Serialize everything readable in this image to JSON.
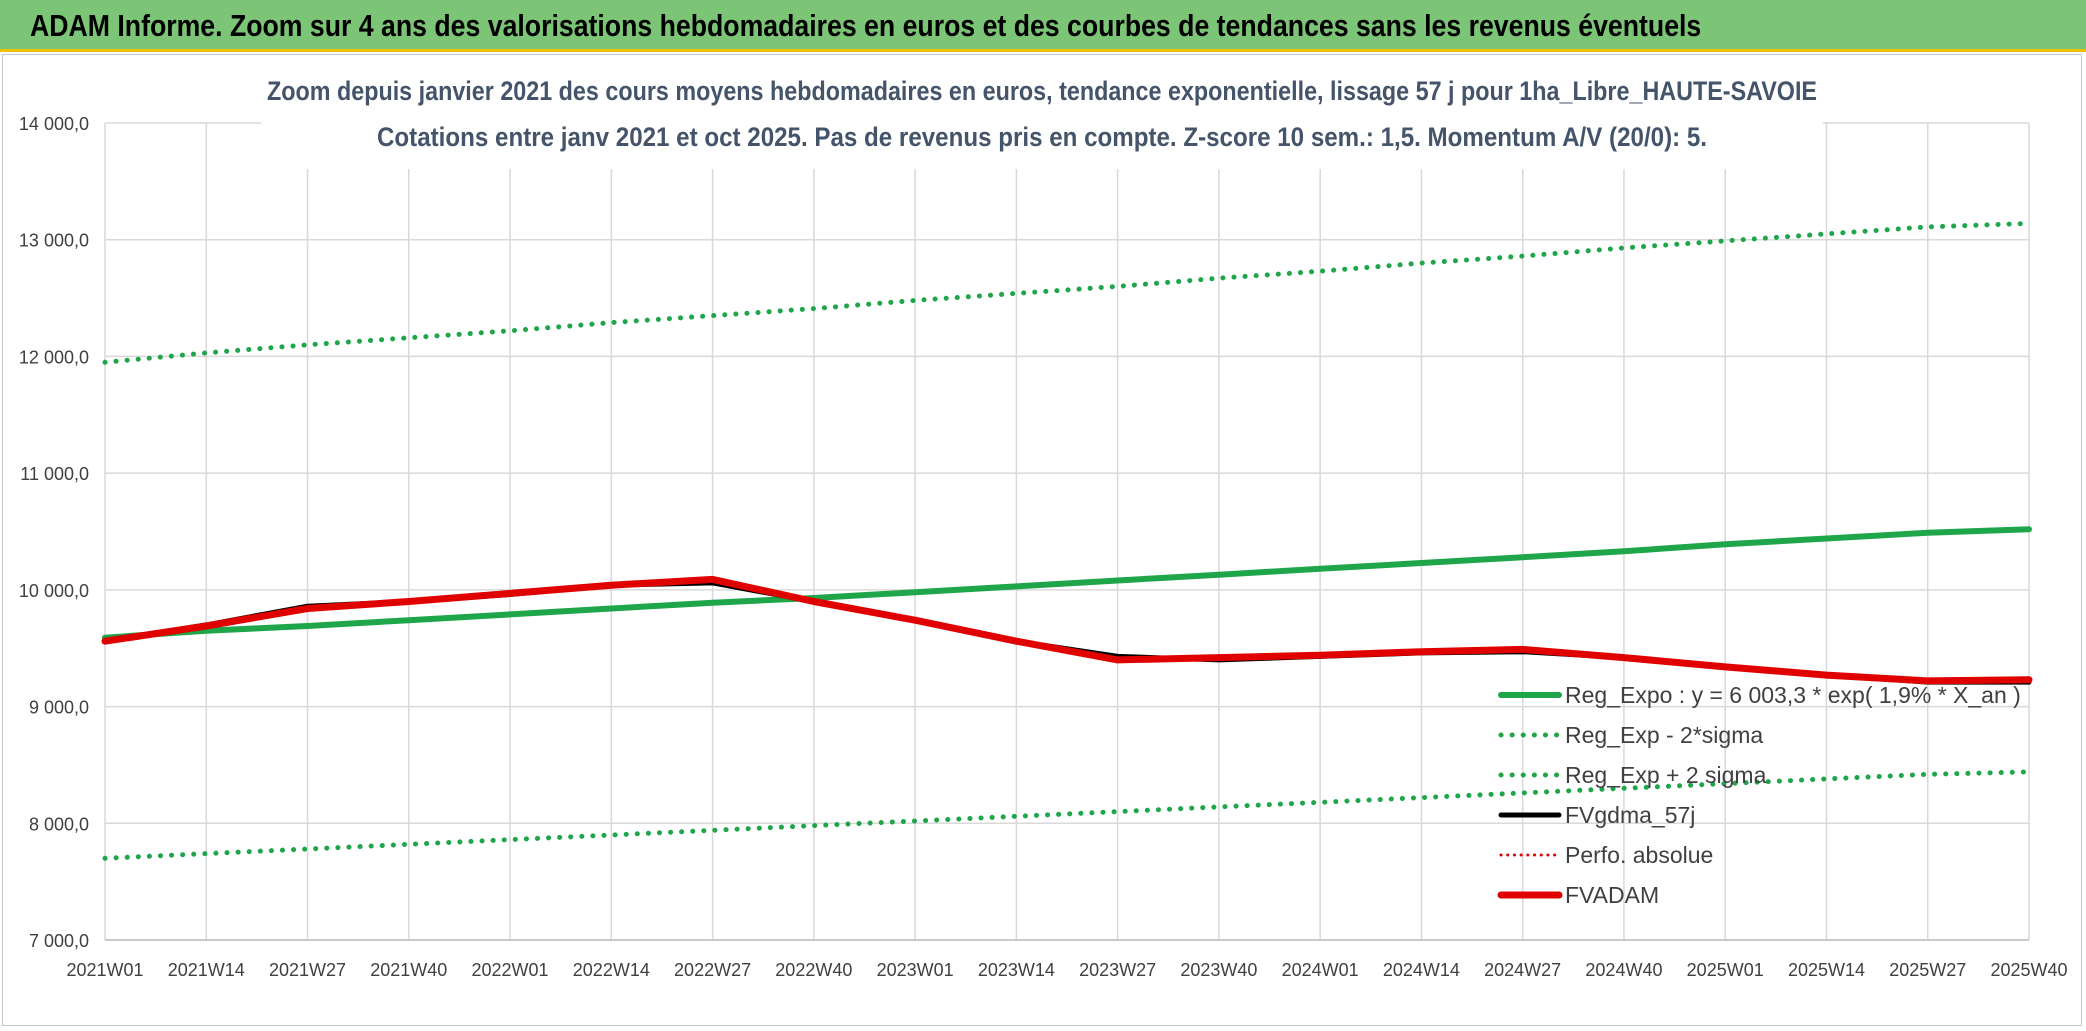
{
  "header": {
    "title": "ADAM Informe. Zoom sur 4 ans des valorisations hebdomadaires en euros et des courbes de tendances sans les revenus éventuels"
  },
  "chart_data": {
    "type": "line",
    "title_line1": "Zoom depuis janvier 2021 des cours moyens hebdomadaires en euros, tendance exponentielle, lissage 57 j pour 1ha_Libre_HAUTE-SAVOIE",
    "title_line2": "Cotations entre janv 2021 et oct 2025. Pas de revenus pris en compte. Z-score 10 sem.: 1,5. Momentum A/V (20/0): 5.",
    "categories": [
      "2021W01",
      "2021W14",
      "2021W27",
      "2021W40",
      "2022W01",
      "2022W14",
      "2022W27",
      "2022W40",
      "2023W01",
      "2023W14",
      "2023W27",
      "2023W40",
      "2024W01",
      "2024W14",
      "2024W27",
      "2024W40",
      "2025W01",
      "2025W14",
      "2025W27",
      "2025W40"
    ],
    "ylim": [
      7000,
      14000
    ],
    "yticks": [
      7000,
      8000,
      9000,
      10000,
      11000,
      12000,
      13000,
      14000
    ],
    "ytick_labels": [
      "7 000,0",
      "8 000,0",
      "9 000,0",
      "10 000,0",
      "11 000,0",
      "12 000,0",
      "13 000,0",
      "14 000,0"
    ],
    "grid": true,
    "legend_position": "right",
    "series": [
      {
        "name": "Reg_Expo : y = 6 003,3 * exp( 1,9% * X_an )",
        "color": "#1fa64a",
        "style": "solid",
        "width": 6,
        "values": [
          9590,
          9650,
          9690,
          9740,
          9790,
          9840,
          9890,
          9930,
          9980,
          10030,
          10080,
          10130,
          10180,
          10230,
          10280,
          10330,
          10390,
          10440,
          10490,
          10520
        ]
      },
      {
        "name": "Reg_Exp - 2*sigma",
        "color": "#1fa64a",
        "style": "dotted",
        "width": 5,
        "values": [
          11950,
          12030,
          12100,
          12160,
          12220,
          12290,
          12350,
          12410,
          12480,
          12540,
          12600,
          12670,
          12730,
          12800,
          12860,
          12930,
          12990,
          13050,
          13110,
          13140
        ]
      },
      {
        "name": "Reg_Exp + 2 sigma",
        "color": "#1fa64a",
        "style": "dotted",
        "width": 5,
        "values": [
          7700,
          7740,
          7780,
          7820,
          7860,
          7900,
          7940,
          7980,
          8020,
          8060,
          8100,
          8140,
          8180,
          8220,
          8260,
          8300,
          8340,
          8380,
          8420,
          8440
        ]
      },
      {
        "name": "FVgdma_57j",
        "color": "#000000",
        "style": "solid",
        "width": 5,
        "values": [
          9560,
          9700,
          9860,
          9900,
          9960,
          10040,
          10060,
          9900,
          9740,
          9560,
          9430,
          9400,
          9430,
          9460,
          9470,
          9420,
          9340,
          9270,
          9210,
          9210
        ]
      },
      {
        "name": "Perfo. absolue",
        "color": "#e00000",
        "style": "dotted",
        "width": 3,
        "values": [
          9560,
          9690,
          9840,
          9900,
          9970,
          10040,
          10090,
          9900,
          9740,
          9560,
          9400,
          9420,
          9440,
          9470,
          9490,
          9420,
          9340,
          9270,
          9220,
          9230
        ]
      },
      {
        "name": "FVADAM",
        "color": "#e00000",
        "style": "solid",
        "width": 7,
        "values": [
          9560,
          9690,
          9840,
          9900,
          9970,
          10040,
          10090,
          9900,
          9740,
          9560,
          9400,
          9420,
          9440,
          9470,
          9490,
          9420,
          9340,
          9270,
          9220,
          9230
        ]
      }
    ]
  }
}
